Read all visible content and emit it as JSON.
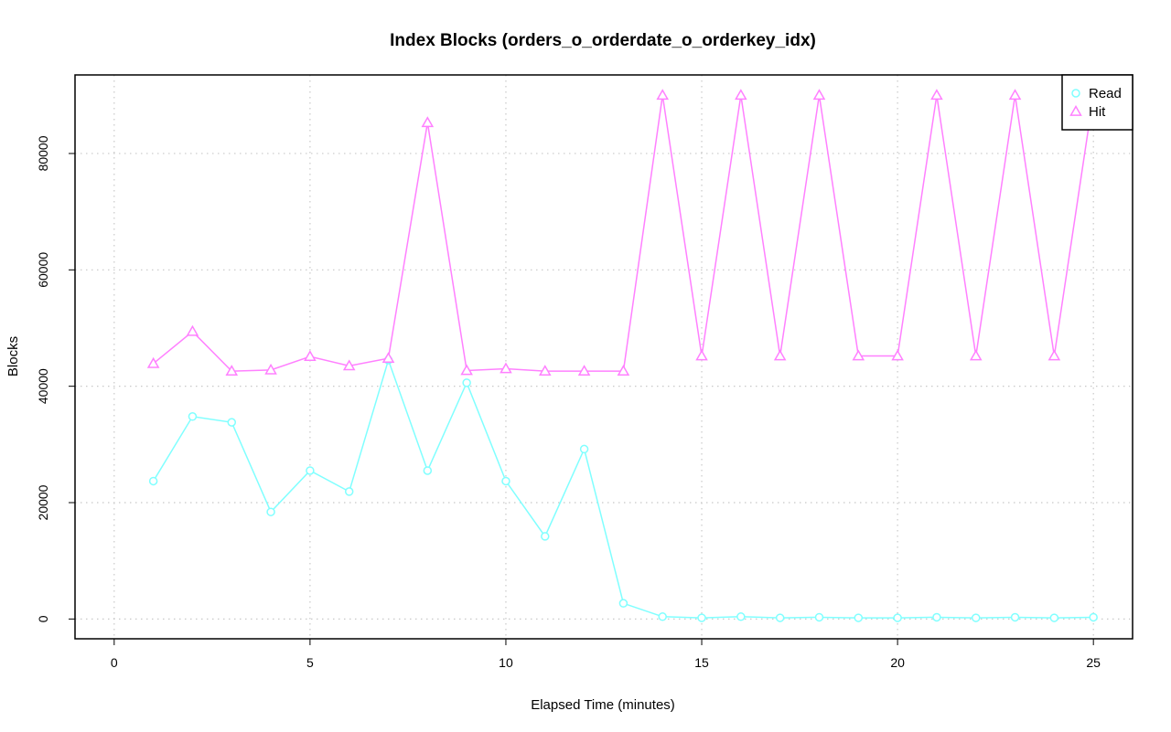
{
  "chart_data": {
    "type": "line",
    "title": "Index Blocks (orders_o_orderdate_o_orderkey_idx)",
    "xlabel": "Elapsed Time (minutes)",
    "ylabel": "Blocks",
    "xlim": [
      -1,
      26
    ],
    "ylim": [
      -3400,
      93500
    ],
    "x_ticks": [
      0,
      5,
      10,
      15,
      20,
      25
    ],
    "y_ticks": [
      0,
      20000,
      40000,
      60000,
      80000
    ],
    "grid": true,
    "legend_position": "top-right",
    "x": [
      1,
      2,
      3,
      4,
      5,
      6,
      7,
      8,
      9,
      10,
      11,
      12,
      13,
      14,
      15,
      16,
      17,
      18,
      19,
      20,
      21,
      22,
      23,
      24,
      25
    ],
    "series": [
      {
        "name": "Read",
        "color": "#80ffff",
        "marker": "circle",
        "values": [
          23700,
          34800,
          33800,
          18400,
          25500,
          21900,
          44500,
          25500,
          40600,
          23700,
          14200,
          29200,
          2700,
          400,
          200,
          400,
          200,
          300,
          200,
          200,
          300,
          200,
          300,
          200,
          300
        ]
      },
      {
        "name": "Hit",
        "color": "#ff80ff",
        "marker": "triangle",
        "values": [
          43900,
          49400,
          42600,
          42800,
          45100,
          43500,
          44800,
          85300,
          42700,
          43000,
          42600,
          42600,
          42600,
          90000,
          45200,
          90000,
          45200,
          90000,
          45200,
          45200,
          90000,
          45200,
          90000,
          45200,
          90000
        ]
      }
    ]
  }
}
